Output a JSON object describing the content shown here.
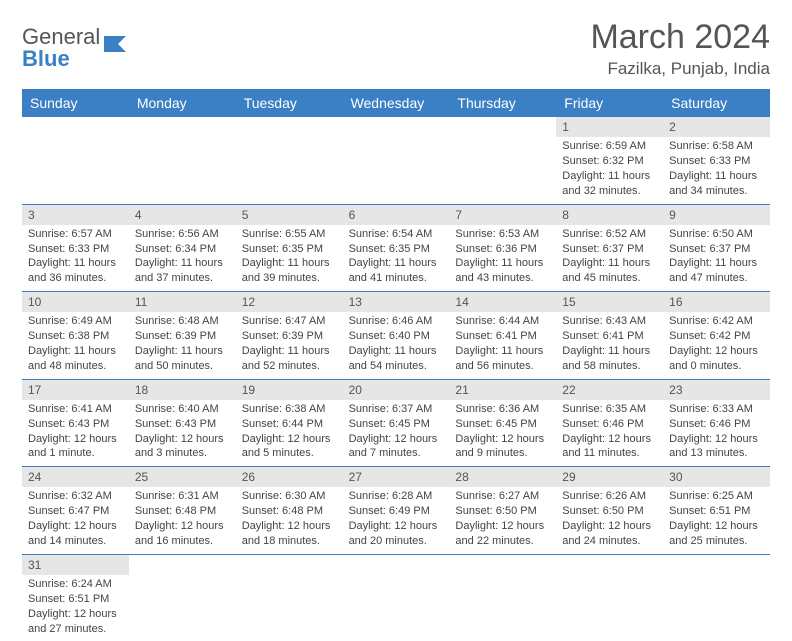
{
  "logo": {
    "text_general": "General",
    "text_blue": "Blue"
  },
  "header": {
    "title": "March 2024",
    "location": "Fazilka, Punjab, India"
  },
  "colors": {
    "header_bg": "#3b7fc4",
    "header_text": "#ffffff",
    "daynum_bg": "#e6e6e6",
    "text": "#444444",
    "border": "#3b7fc4"
  },
  "typography": {
    "title_fontsize": 34,
    "location_fontsize": 17,
    "dayheader_fontsize": 14,
    "cell_fontsize": 11
  },
  "layout": {
    "columns": 7,
    "rows": 6,
    "leading_blanks": 5,
    "trailing_blanks": 6
  },
  "day_headers": [
    "Sunday",
    "Monday",
    "Tuesday",
    "Wednesday",
    "Thursday",
    "Friday",
    "Saturday"
  ],
  "days": [
    {
      "n": "1",
      "sunrise": "Sunrise: 6:59 AM",
      "sunset": "Sunset: 6:32 PM",
      "daylight": "Daylight: 11 hours and 32 minutes."
    },
    {
      "n": "2",
      "sunrise": "Sunrise: 6:58 AM",
      "sunset": "Sunset: 6:33 PM",
      "daylight": "Daylight: 11 hours and 34 minutes."
    },
    {
      "n": "3",
      "sunrise": "Sunrise: 6:57 AM",
      "sunset": "Sunset: 6:33 PM",
      "daylight": "Daylight: 11 hours and 36 minutes."
    },
    {
      "n": "4",
      "sunrise": "Sunrise: 6:56 AM",
      "sunset": "Sunset: 6:34 PM",
      "daylight": "Daylight: 11 hours and 37 minutes."
    },
    {
      "n": "5",
      "sunrise": "Sunrise: 6:55 AM",
      "sunset": "Sunset: 6:35 PM",
      "daylight": "Daylight: 11 hours and 39 minutes."
    },
    {
      "n": "6",
      "sunrise": "Sunrise: 6:54 AM",
      "sunset": "Sunset: 6:35 PM",
      "daylight": "Daylight: 11 hours and 41 minutes."
    },
    {
      "n": "7",
      "sunrise": "Sunrise: 6:53 AM",
      "sunset": "Sunset: 6:36 PM",
      "daylight": "Daylight: 11 hours and 43 minutes."
    },
    {
      "n": "8",
      "sunrise": "Sunrise: 6:52 AM",
      "sunset": "Sunset: 6:37 PM",
      "daylight": "Daylight: 11 hours and 45 minutes."
    },
    {
      "n": "9",
      "sunrise": "Sunrise: 6:50 AM",
      "sunset": "Sunset: 6:37 PM",
      "daylight": "Daylight: 11 hours and 47 minutes."
    },
    {
      "n": "10",
      "sunrise": "Sunrise: 6:49 AM",
      "sunset": "Sunset: 6:38 PM",
      "daylight": "Daylight: 11 hours and 48 minutes."
    },
    {
      "n": "11",
      "sunrise": "Sunrise: 6:48 AM",
      "sunset": "Sunset: 6:39 PM",
      "daylight": "Daylight: 11 hours and 50 minutes."
    },
    {
      "n": "12",
      "sunrise": "Sunrise: 6:47 AM",
      "sunset": "Sunset: 6:39 PM",
      "daylight": "Daylight: 11 hours and 52 minutes."
    },
    {
      "n": "13",
      "sunrise": "Sunrise: 6:46 AM",
      "sunset": "Sunset: 6:40 PM",
      "daylight": "Daylight: 11 hours and 54 minutes."
    },
    {
      "n": "14",
      "sunrise": "Sunrise: 6:44 AM",
      "sunset": "Sunset: 6:41 PM",
      "daylight": "Daylight: 11 hours and 56 minutes."
    },
    {
      "n": "15",
      "sunrise": "Sunrise: 6:43 AM",
      "sunset": "Sunset: 6:41 PM",
      "daylight": "Daylight: 11 hours and 58 minutes."
    },
    {
      "n": "16",
      "sunrise": "Sunrise: 6:42 AM",
      "sunset": "Sunset: 6:42 PM",
      "daylight": "Daylight: 12 hours and 0 minutes."
    },
    {
      "n": "17",
      "sunrise": "Sunrise: 6:41 AM",
      "sunset": "Sunset: 6:43 PM",
      "daylight": "Daylight: 12 hours and 1 minute."
    },
    {
      "n": "18",
      "sunrise": "Sunrise: 6:40 AM",
      "sunset": "Sunset: 6:43 PM",
      "daylight": "Daylight: 12 hours and 3 minutes."
    },
    {
      "n": "19",
      "sunrise": "Sunrise: 6:38 AM",
      "sunset": "Sunset: 6:44 PM",
      "daylight": "Daylight: 12 hours and 5 minutes."
    },
    {
      "n": "20",
      "sunrise": "Sunrise: 6:37 AM",
      "sunset": "Sunset: 6:45 PM",
      "daylight": "Daylight: 12 hours and 7 minutes."
    },
    {
      "n": "21",
      "sunrise": "Sunrise: 6:36 AM",
      "sunset": "Sunset: 6:45 PM",
      "daylight": "Daylight: 12 hours and 9 minutes."
    },
    {
      "n": "22",
      "sunrise": "Sunrise: 6:35 AM",
      "sunset": "Sunset: 6:46 PM",
      "daylight": "Daylight: 12 hours and 11 minutes."
    },
    {
      "n": "23",
      "sunrise": "Sunrise: 6:33 AM",
      "sunset": "Sunset: 6:46 PM",
      "daylight": "Daylight: 12 hours and 13 minutes."
    },
    {
      "n": "24",
      "sunrise": "Sunrise: 6:32 AM",
      "sunset": "Sunset: 6:47 PM",
      "daylight": "Daylight: 12 hours and 14 minutes."
    },
    {
      "n": "25",
      "sunrise": "Sunrise: 6:31 AM",
      "sunset": "Sunset: 6:48 PM",
      "daylight": "Daylight: 12 hours and 16 minutes."
    },
    {
      "n": "26",
      "sunrise": "Sunrise: 6:30 AM",
      "sunset": "Sunset: 6:48 PM",
      "daylight": "Daylight: 12 hours and 18 minutes."
    },
    {
      "n": "27",
      "sunrise": "Sunrise: 6:28 AM",
      "sunset": "Sunset: 6:49 PM",
      "daylight": "Daylight: 12 hours and 20 minutes."
    },
    {
      "n": "28",
      "sunrise": "Sunrise: 6:27 AM",
      "sunset": "Sunset: 6:50 PM",
      "daylight": "Daylight: 12 hours and 22 minutes."
    },
    {
      "n": "29",
      "sunrise": "Sunrise: 6:26 AM",
      "sunset": "Sunset: 6:50 PM",
      "daylight": "Daylight: 12 hours and 24 minutes."
    },
    {
      "n": "30",
      "sunrise": "Sunrise: 6:25 AM",
      "sunset": "Sunset: 6:51 PM",
      "daylight": "Daylight: 12 hours and 25 minutes."
    },
    {
      "n": "31",
      "sunrise": "Sunrise: 6:24 AM",
      "sunset": "Sunset: 6:51 PM",
      "daylight": "Daylight: 12 hours and 27 minutes."
    }
  ]
}
